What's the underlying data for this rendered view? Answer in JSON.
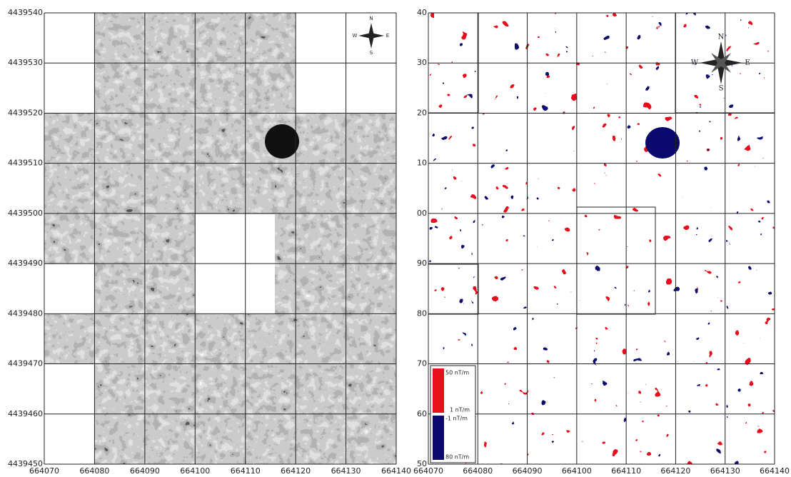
{
  "left_map": {
    "y_labels": [
      "4439540",
      "4439530",
      "4439520",
      "4439510",
      "4439500",
      "4439490",
      "4439480",
      "4439470",
      "4439460",
      "4439450"
    ],
    "x_labels": [
      "664070",
      "664080",
      "664090",
      "664100",
      "664110",
      "664120",
      "664130",
      "664140"
    ],
    "compass": {
      "n": "N",
      "s": "S",
      "w": "W",
      "e": "E"
    }
  },
  "right_map": {
    "y_labels": [
      "40",
      "30",
      "20",
      "10",
      "00",
      "90",
      "80",
      "70",
      "60",
      "50"
    ],
    "x_labels": [
      "664070",
      "664080",
      "664090",
      "664100",
      "664110",
      "664120",
      "664130",
      "664140"
    ],
    "compass": {
      "n": "N",
      "s": "S",
      "w": "W",
      "e": "E"
    },
    "legend": {
      "max_positive": "50 nT/m",
      "min_positive": "1 nT/m",
      "min_negative": "-1 nT/m",
      "max_negative": "80 nT/m"
    }
  }
}
